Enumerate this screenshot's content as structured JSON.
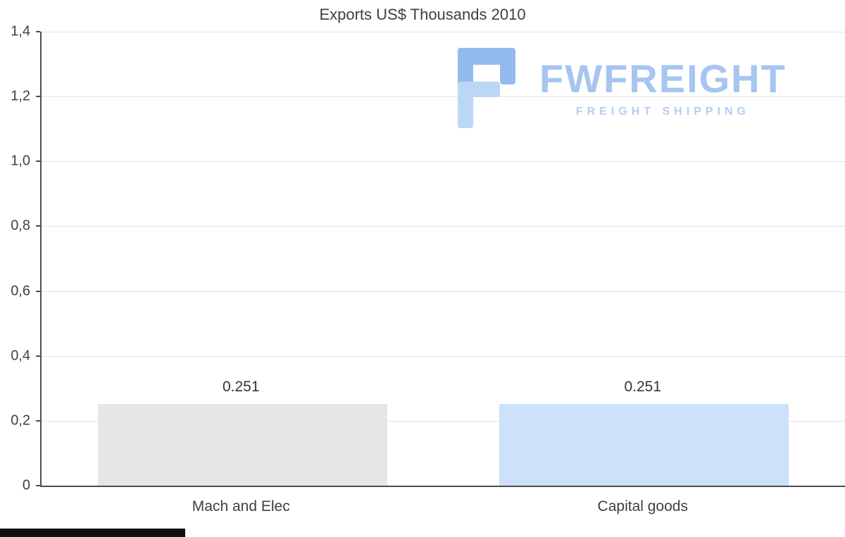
{
  "title": "Exports US$ Thousands 2010",
  "watermark": {
    "brand": "FWFREIGHT",
    "tagline": "FREIGHT SHIPPING"
  },
  "colors": {
    "bar_mach_and_elec": "#e6e6e6",
    "bar_capital_goods": "#cde1f8",
    "gridline": "#e3e3e3",
    "axis": "#4d4d4d",
    "text": "#404040",
    "logo_primary": "#a6c5f0",
    "logo_secondary": "#b3cdf3",
    "logo_icon_dark": "#94bbee",
    "logo_icon_light": "#bcd6f6"
  },
  "chart_data": {
    "type": "bar",
    "title": "Exports US$ Thousands 2010",
    "categories": [
      "Mach and Elec",
      "Capital goods"
    ],
    "values": [
      0.251,
      0.251
    ],
    "value_labels": [
      "0.251",
      "0.251"
    ],
    "bar_colors": [
      "#e6e6e6",
      "#cde1f8"
    ],
    "xlabel": "",
    "ylabel": "",
    "ylim": [
      0,
      1.4
    ],
    "yticks": [
      0,
      0.2,
      0.4,
      0.6,
      0.8,
      1.0,
      1.2,
      1.4
    ],
    "ytick_labels": [
      "0",
      "0,2",
      "0,4",
      "0,6",
      "0,8",
      "1,0",
      "1,2",
      "1,4"
    ],
    "grid": true,
    "legend": "none",
    "decimal_separator": ","
  }
}
